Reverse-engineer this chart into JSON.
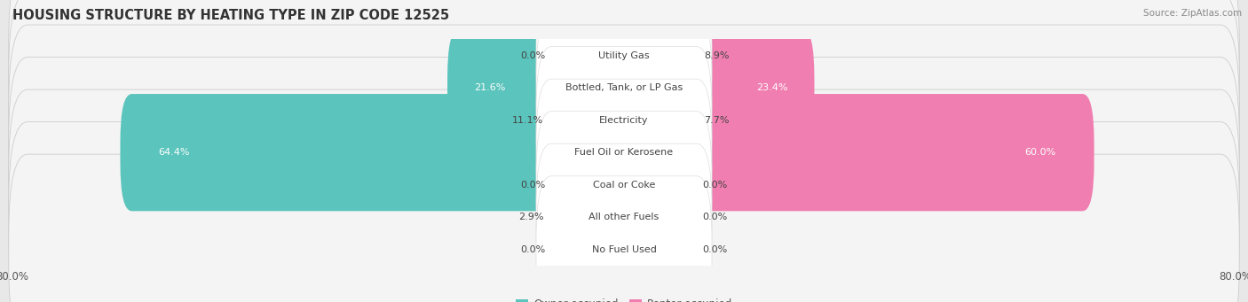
{
  "title": "HOUSING STRUCTURE BY HEATING TYPE IN ZIP CODE 12525",
  "source": "Source: ZipAtlas.com",
  "categories": [
    "Utility Gas",
    "Bottled, Tank, or LP Gas",
    "Electricity",
    "Fuel Oil or Kerosene",
    "Coal or Coke",
    "All other Fuels",
    "No Fuel Used"
  ],
  "owner_values": [
    0.0,
    21.6,
    11.1,
    64.4,
    0.0,
    2.9,
    0.0
  ],
  "renter_values": [
    8.9,
    23.4,
    7.7,
    60.0,
    0.0,
    0.0,
    0.0
  ],
  "owner_color": "#5BC4BC",
  "renter_color": "#F07EB0",
  "axis_limit": 80.0,
  "bg_color": "#e8e8e8",
  "row_color": "#f4f4f4",
  "title_fontsize": 10.5,
  "label_fontsize": 8,
  "value_fontsize": 8,
  "tick_fontsize": 8.5,
  "legend_fontsize": 8.5
}
